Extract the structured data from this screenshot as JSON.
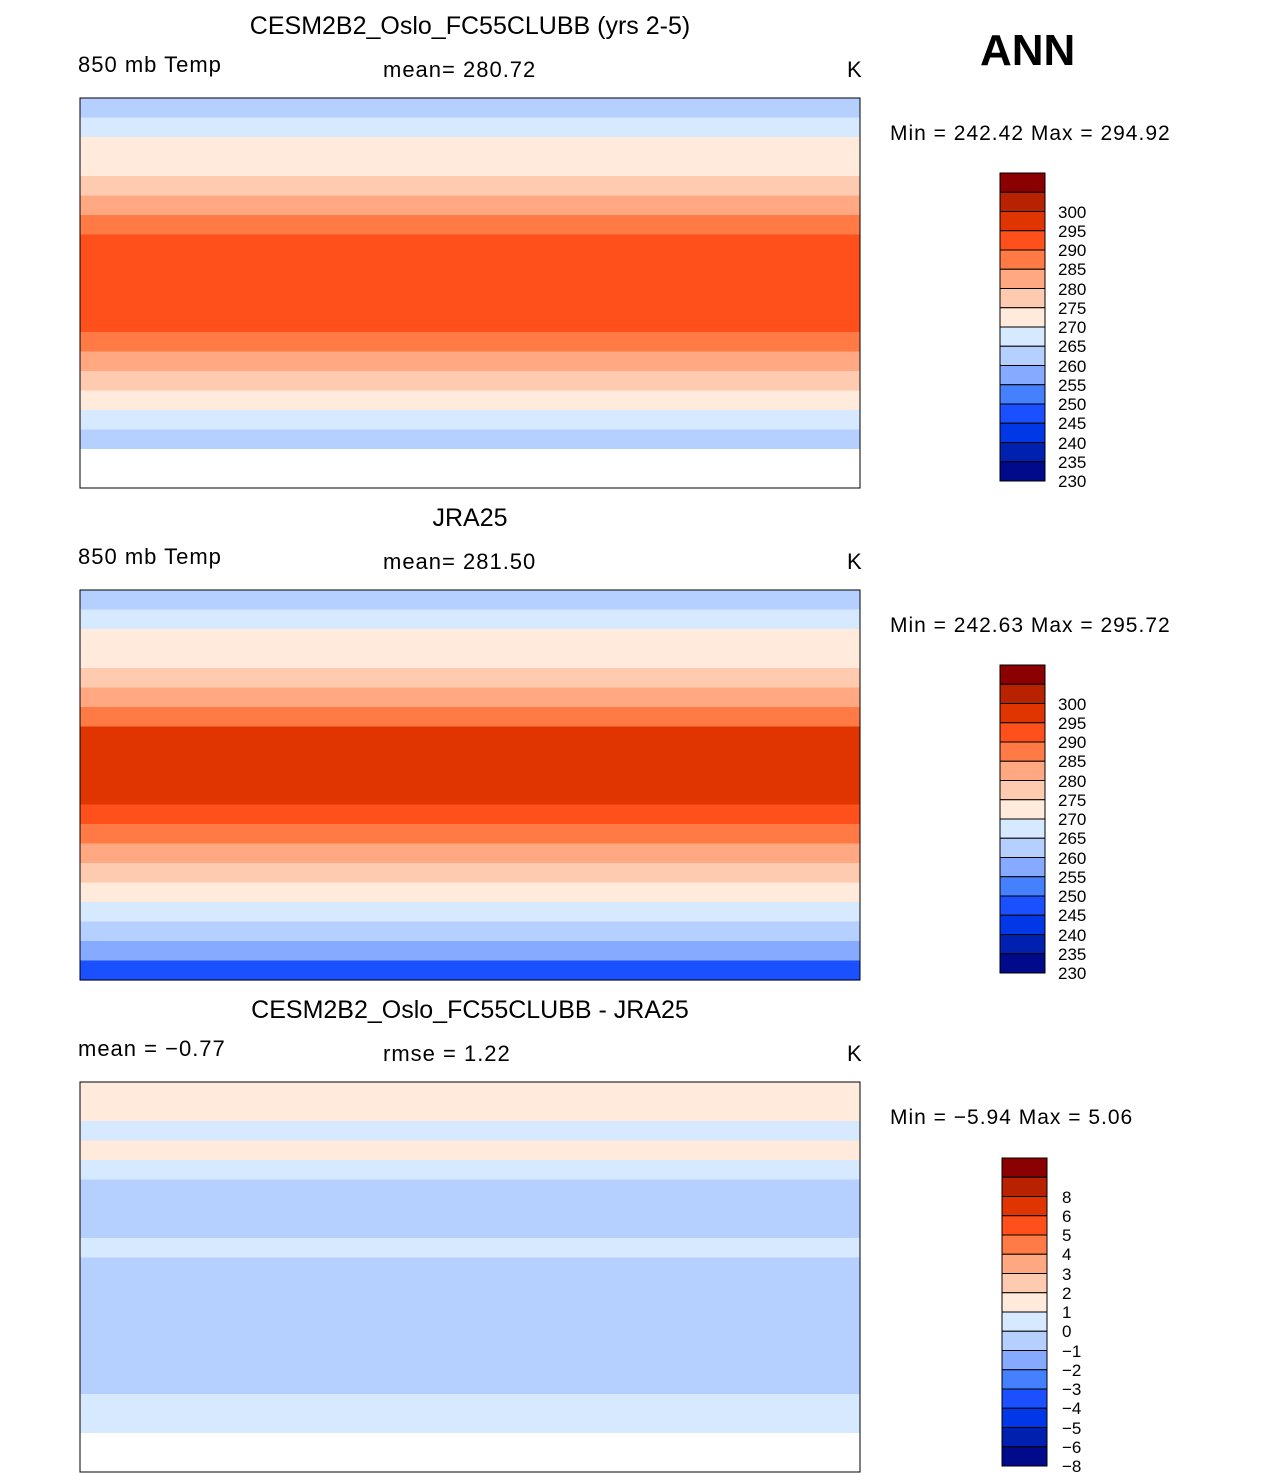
{
  "season": "ANN",
  "chart_data": {
    "type": "heatmap",
    "colors_bottom_up": [
      "#000a8a",
      "#0020b0",
      "#0037e6",
      "#1a50ff",
      "#4580ff",
      "#85aaff",
      "#b5d0ff",
      "#d6e9ff",
      "#ffeadb",
      "#ffcbb0",
      "#ffa882",
      "#ff7a45",
      "#ff4f1a",
      "#e03500",
      "#b82200",
      "#8b0000"
    ],
    "panels": [
      {
        "title": "CESM2B2_Oslo_FC55CLUBB (yrs 2-5)",
        "left": "850  mb  Temp",
        "center": "mean=  280.72",
        "units": "K",
        "minmax": "Min  =  242.42  Max  =  294.92",
        "levels": [
          230,
          235,
          240,
          245,
          250,
          255,
          260,
          265,
          270,
          275,
          280,
          285,
          290,
          295,
          300
        ],
        "level_labels": [
          "230",
          "235",
          "240",
          "245",
          "250",
          "255",
          "260",
          "265",
          "270",
          "275",
          "280",
          "285",
          "290",
          "295",
          "300"
        ],
        "zonal_band_values": [
          257,
          262,
          267,
          268,
          272,
          277,
          283,
          288,
          288,
          289,
          289,
          288,
          283,
          277,
          272,
          267,
          262,
          257,
          null,
          null
        ]
      },
      {
        "title": "JRA25",
        "left": "850  mb  Temp",
        "center": "mean=  281.50",
        "units": "K",
        "minmax": "Min  =  242.63  Max  =  295.72",
        "levels": [
          230,
          235,
          240,
          245,
          250,
          255,
          260,
          265,
          270,
          275,
          280,
          285,
          290,
          295,
          300
        ],
        "level_labels": [
          "230",
          "235",
          "240",
          "245",
          "250",
          "255",
          "260",
          "265",
          "270",
          "275",
          "280",
          "285",
          "290",
          "295",
          "300"
        ],
        "zonal_band_values": [
          257,
          262,
          267,
          268,
          272,
          278,
          284,
          291,
          292,
          292,
          291,
          289,
          284,
          278,
          272,
          267,
          262,
          257,
          252,
          243
        ]
      },
      {
        "title": "CESM2B2_Oslo_FC55CLUBB - JRA25",
        "left": "mean  =    −0.77",
        "center": "rmse  =     1.22",
        "units": "K",
        "minmax": "Min  =    −5.94  Max  =      5.06",
        "levels": [
          -8,
          -6,
          -5,
          -4,
          -3,
          -2,
          -1,
          0,
          1,
          2,
          3,
          4,
          5,
          6,
          8
        ],
        "level_labels": [
          "−8",
          "−6",
          "−5",
          "−4",
          "−3",
          "−2",
          "−1",
          "0",
          "1",
          "2",
          "3",
          "4",
          "5",
          "6",
          "8"
        ],
        "zonal_band_values": [
          0.5,
          0.3,
          -0.5,
          0.3,
          -0.5,
          -1.5,
          -1.5,
          -1.2,
          -0.5,
          -1.2,
          -1.5,
          -1.5,
          -1.5,
          -1.2,
          -1.5,
          -1.5,
          -0.5,
          -0.5,
          null,
          null
        ]
      }
    ]
  }
}
